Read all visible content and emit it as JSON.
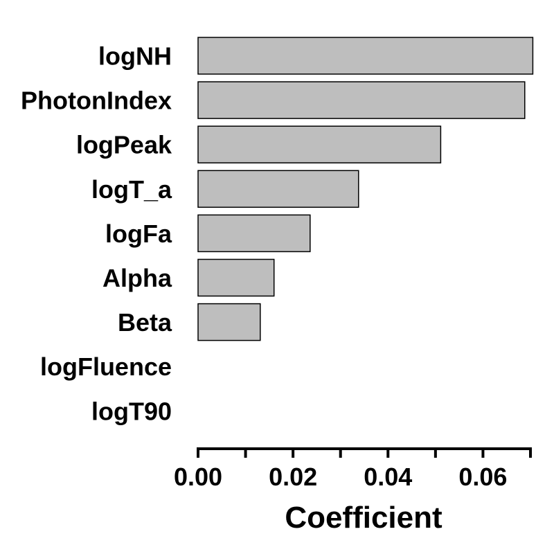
{
  "chart_data": {
    "type": "bar",
    "orientation": "horizontal",
    "categories": [
      "logNH",
      "PhotonIndex",
      "logPeak",
      "logT_a",
      "logFa",
      "Alpha",
      "Beta",
      "logFluence",
      "logT90"
    ],
    "values": [
      0.0705,
      0.0688,
      0.0511,
      0.0338,
      0.0236,
      0.016,
      0.0131,
      0.0,
      0.0
    ],
    "xlabel": "Coefficient",
    "ylabel": "",
    "xlim": [
      0,
      0.07
    ],
    "xticks": [
      0.0,
      0.01,
      0.02,
      0.03,
      0.04,
      0.05,
      0.06,
      0.07
    ],
    "xtick_labels": [
      "0.00",
      "0.02",
      "0.04",
      "0.06"
    ],
    "xtick_label_values": [
      0.0,
      0.02,
      0.04,
      0.06
    ],
    "grid": false,
    "legend": "none",
    "colors": {
      "bar_fill": "#bebebe",
      "bar_stroke": "#000000"
    }
  }
}
